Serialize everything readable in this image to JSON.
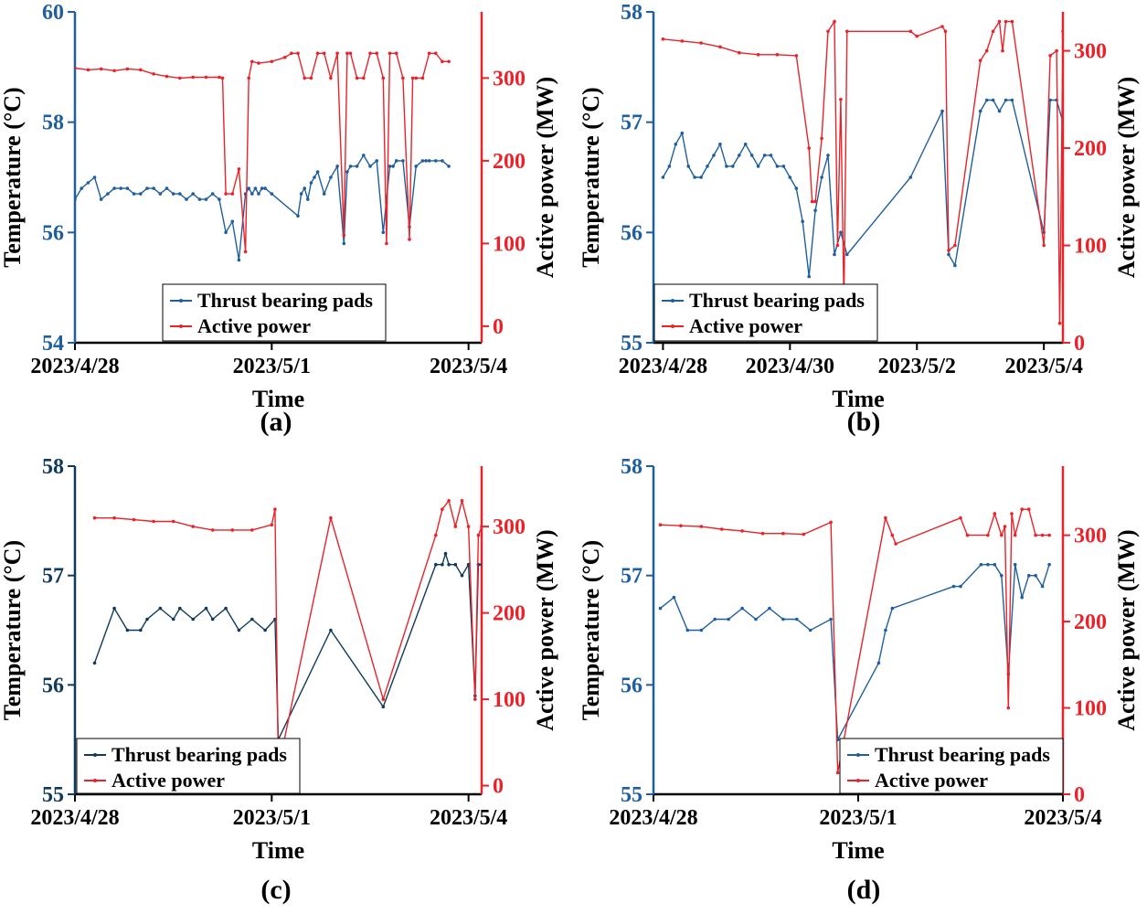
{
  "colors": {
    "temperature": "#1f5f9e",
    "temperature_dark": "#0f3a5c",
    "power": "#e8232a",
    "axis": "#000000"
  },
  "chart_data": [
    {
      "type": "line",
      "panel_label": "(a)",
      "xlabel": "Time",
      "ylabel_left": "Temperature (°C)",
      "ylabel_right": "Active power (MW)",
      "x_ticks": [
        "2023/4/28",
        "2023/5/1",
        "2023/5/4"
      ],
      "x_tick_days": [
        0,
        3,
        6
      ],
      "xlim_days": [
        0,
        6.2
      ],
      "ylim_left": [
        54,
        60
      ],
      "yticks_left": [
        "54",
        "56",
        "58",
        "60"
      ],
      "ylim_right": [
        -20,
        380
      ],
      "yticks_right": [
        "0",
        "100",
        "200",
        "300"
      ],
      "legend": [
        "Thrust bearing pads",
        "Active power"
      ],
      "series": [
        {
          "name": "Thrust bearing pads",
          "axis": "left",
          "color_key": "temperature",
          "x": [
            0,
            0.1,
            0.2,
            0.3,
            0.4,
            0.5,
            0.6,
            0.7,
            0.8,
            0.9,
            1.0,
            1.1,
            1.2,
            1.3,
            1.4,
            1.5,
            1.6,
            1.7,
            1.8,
            1.9,
            2.0,
            2.1,
            2.2,
            2.3,
            2.4,
            2.5,
            2.6,
            2.65,
            2.7,
            2.75,
            2.8,
            2.85,
            2.9,
            3.0,
            3.4,
            3.45,
            3.5,
            3.55,
            3.6,
            3.65,
            3.7,
            3.8,
            3.9,
            4.0,
            4.1,
            4.15,
            4.2,
            4.3,
            4.4,
            4.5,
            4.6,
            4.7,
            4.8,
            4.85,
            4.9,
            5.0,
            5.1,
            5.2,
            5.3,
            5.35,
            5.4,
            5.5,
            5.6,
            5.7
          ],
          "y": [
            56.6,
            56.8,
            56.9,
            57.0,
            56.6,
            56.7,
            56.8,
            56.8,
            56.8,
            56.7,
            56.7,
            56.8,
            56.8,
            56.7,
            56.8,
            56.7,
            56.7,
            56.6,
            56.7,
            56.6,
            56.6,
            56.7,
            56.6,
            56.0,
            56.2,
            55.5,
            56.7,
            56.8,
            56.7,
            56.8,
            56.7,
            56.8,
            56.8,
            56.7,
            56.3,
            56.7,
            56.8,
            56.6,
            56.9,
            57.0,
            57.1,
            56.7,
            57.0,
            57.2,
            55.8,
            57.1,
            57.2,
            57.2,
            57.4,
            57.2,
            57.3,
            56.0,
            57.2,
            57.2,
            57.3,
            57.3,
            56.1,
            57.2,
            57.3,
            57.3,
            57.3,
            57.3,
            57.3,
            57.2
          ]
        },
        {
          "name": "Active power",
          "axis": "right",
          "color_key": "power",
          "x": [
            0,
            0.2,
            0.4,
            0.6,
            0.8,
            1.0,
            1.2,
            1.4,
            1.6,
            1.8,
            2.0,
            2.2,
            2.25,
            2.3,
            2.4,
            2.5,
            2.6,
            2.65,
            2.7,
            2.8,
            3.0,
            3.2,
            3.3,
            3.4,
            3.5,
            3.6,
            3.7,
            3.8,
            3.9,
            4.0,
            4.1,
            4.15,
            4.2,
            4.3,
            4.4,
            4.5,
            4.6,
            4.7,
            4.75,
            4.8,
            4.9,
            5.0,
            5.1,
            5.15,
            5.2,
            5.3,
            5.4,
            5.5,
            5.6,
            5.7
          ],
          "y": [
            312,
            310,
            311,
            309,
            311,
            310,
            305,
            302,
            300,
            301,
            301,
            301,
            300,
            160,
            160,
            190,
            90,
            300,
            320,
            318,
            320,
            325,
            330,
            330,
            300,
            300,
            330,
            330,
            300,
            330,
            110,
            330,
            330,
            300,
            300,
            330,
            330,
            300,
            100,
            330,
            330,
            300,
            105,
            300,
            300,
            300,
            330,
            330,
            320,
            320
          ]
        }
      ]
    },
    {
      "type": "line",
      "panel_label": "(b)",
      "xlabel": "Time",
      "ylabel_left": "Temperature (°C)",
      "ylabel_right": "Active power (MW)",
      "x_ticks": [
        "2023/4/28",
        "2023/4/30",
        "2023/5/2",
        "2023/5/4"
      ],
      "x_tick_days": [
        0,
        2,
        4,
        6
      ],
      "xlim_days": [
        -0.15,
        6.3
      ],
      "ylim_left": [
        55,
        58
      ],
      "yticks_left": [
        "55",
        "56",
        "57",
        "58"
      ],
      "ylim_right": [
        0,
        340
      ],
      "yticks_right": [
        "0",
        "100",
        "200",
        "300"
      ],
      "legend": [
        "Thrust bearing pads",
        "Active power"
      ],
      "series": [
        {
          "name": "Thrust bearing pads",
          "axis": "left",
          "color_key": "temperature",
          "x": [
            0,
            0.1,
            0.2,
            0.3,
            0.4,
            0.5,
            0.6,
            0.7,
            0.8,
            0.9,
            1.0,
            1.1,
            1.2,
            1.3,
            1.4,
            1.5,
            1.6,
            1.7,
            1.8,
            1.9,
            2.0,
            2.1,
            2.2,
            2.3,
            2.4,
            2.5,
            2.6,
            2.7,
            2.8,
            2.9,
            3.9,
            4.4,
            4.5,
            4.6,
            5.0,
            5.1,
            5.2,
            5.3,
            5.4,
            5.5,
            6.0,
            6.1,
            6.2,
            6.3
          ],
          "y": [
            56.5,
            56.6,
            56.8,
            56.9,
            56.6,
            56.5,
            56.5,
            56.6,
            56.7,
            56.8,
            56.6,
            56.6,
            56.7,
            56.8,
            56.7,
            56.6,
            56.7,
            56.7,
            56.6,
            56.6,
            56.5,
            56.4,
            56.1,
            55.6,
            56.2,
            56.5,
            56.7,
            55.8,
            56.0,
            55.8,
            56.5,
            57.1,
            55.8,
            55.7,
            57.1,
            57.2,
            57.2,
            57.1,
            57.2,
            57.2,
            56.0,
            57.2,
            57.2,
            57.0
          ]
        },
        {
          "name": "Active power",
          "axis": "right",
          "color_key": "power",
          "x": [
            0,
            0.3,
            0.6,
            0.9,
            1.2,
            1.5,
            1.8,
            2.1,
            2.3,
            2.35,
            2.4,
            2.5,
            2.6,
            2.7,
            2.75,
            2.8,
            2.85,
            2.9,
            3.9,
            4.0,
            4.4,
            4.45,
            4.5,
            4.6,
            5.0,
            5.1,
            5.2,
            5.3,
            5.35,
            5.4,
            5.5,
            6.0,
            6.1,
            6.2,
            6.25,
            6.3
          ],
          "y": [
            312,
            310,
            308,
            304,
            298,
            296,
            296,
            295,
            200,
            145,
            145,
            210,
            320,
            330,
            100,
            250,
            40,
            320,
            320,
            315,
            325,
            320,
            95,
            100,
            290,
            300,
            320,
            330,
            300,
            330,
            330,
            100,
            295,
            300,
            20,
            320
          ]
        }
      ]
    },
    {
      "type": "line",
      "panel_label": "(c)",
      "xlabel": "Time",
      "ylabel_left": "Temperature (°C)",
      "ylabel_right": "Active power (MW)",
      "x_ticks": [
        "2023/4/28",
        "2023/5/1",
        "2023/5/4"
      ],
      "x_tick_days": [
        0,
        3,
        6
      ],
      "xlim_days": [
        0,
        6.2
      ],
      "ylim_left": [
        55,
        58
      ],
      "yticks_left": [
        "55",
        "56",
        "57",
        "58"
      ],
      "ylim_right": [
        -10,
        370
      ],
      "yticks_right": [
        "0",
        "100",
        "200",
        "300"
      ],
      "legend": [
        "Thrust bearing pads",
        "Active power"
      ],
      "series": [
        {
          "name": "Thrust bearing pads",
          "axis": "left",
          "color_key": "temperature_dark",
          "x": [
            0.3,
            0.6,
            0.8,
            1.0,
            1.1,
            1.3,
            1.5,
            1.6,
            1.8,
            2.0,
            2.1,
            2.3,
            2.5,
            2.7,
            2.9,
            3.05,
            3.1,
            3.9,
            4.7,
            5.5,
            5.6,
            5.65,
            5.7,
            5.8,
            5.9,
            6.0,
            6.1,
            6.15,
            6.2
          ],
          "y": [
            56.2,
            56.7,
            56.5,
            56.5,
            56.6,
            56.7,
            56.6,
            56.7,
            56.6,
            56.7,
            56.6,
            56.7,
            56.5,
            56.6,
            56.5,
            56.6,
            55.5,
            56.5,
            55.8,
            57.1,
            57.1,
            57.2,
            57.1,
            57.1,
            57.0,
            57.1,
            55.9,
            57.1,
            57.1
          ]
        },
        {
          "name": "Active power",
          "axis": "right",
          "color_key": "power",
          "x": [
            0.3,
            0.6,
            0.9,
            1.2,
            1.5,
            1.8,
            2.1,
            2.4,
            2.7,
            3.0,
            3.05,
            3.1,
            3.9,
            4.7,
            5.5,
            5.6,
            5.7,
            5.8,
            5.9,
            6.0,
            6.1,
            6.15,
            6.2,
            6.25
          ],
          "y": [
            310,
            310,
            308,
            306,
            306,
            300,
            296,
            296,
            296,
            302,
            320,
            20,
            310,
            100,
            290,
            320,
            330,
            300,
            330,
            300,
            100,
            290,
            300,
            20
          ]
        }
      ]
    },
    {
      "type": "line",
      "panel_label": "(d)",
      "xlabel": "Time",
      "ylabel_left": "Temperature (°C)",
      "ylabel_right": "Active power (MW)",
      "x_ticks": [
        "2023/4/28",
        "2023/5/1",
        "2023/5/4"
      ],
      "x_tick_days": [
        0,
        3,
        6
      ],
      "xlim_days": [
        0,
        6.0
      ],
      "ylim_left": [
        55,
        58
      ],
      "yticks_left": [
        "55",
        "56",
        "57",
        "58"
      ],
      "ylim_right": [
        0,
        380
      ],
      "yticks_right": [
        "0",
        "100",
        "200",
        "300"
      ],
      "legend": [
        "Thrust bearing pads",
        "Active power"
      ],
      "series": [
        {
          "name": "Thrust bearing pads",
          "axis": "left",
          "color_key": "temperature",
          "x": [
            0.1,
            0.3,
            0.5,
            0.7,
            0.9,
            1.1,
            1.3,
            1.5,
            1.7,
            1.9,
            2.1,
            2.3,
            2.6,
            2.7,
            3.3,
            3.4,
            3.5,
            4.4,
            4.5,
            4.8,
            4.9,
            5.0,
            5.1,
            5.2,
            5.3,
            5.4,
            5.5,
            5.6,
            5.7,
            5.8
          ],
          "y": [
            56.7,
            56.8,
            56.5,
            56.5,
            56.6,
            56.6,
            56.7,
            56.6,
            56.7,
            56.6,
            56.6,
            56.5,
            56.6,
            55.5,
            56.2,
            56.5,
            56.7,
            56.9,
            56.9,
            57.1,
            57.1,
            57.1,
            57.0,
            56.1,
            57.1,
            56.8,
            57.0,
            57.0,
            56.9,
            57.1
          ]
        },
        {
          "name": "Active power",
          "axis": "right",
          "color_key": "power",
          "x": [
            0.1,
            0.4,
            0.7,
            1.0,
            1.3,
            1.6,
            1.9,
            2.2,
            2.6,
            2.7,
            3.4,
            3.5,
            3.55,
            4.5,
            4.6,
            4.9,
            5.0,
            5.1,
            5.15,
            5.2,
            5.25,
            5.3,
            5.4,
            5.5,
            5.6,
            5.7,
            5.8
          ],
          "y": [
            312,
            311,
            310,
            307,
            305,
            302,
            302,
            301,
            315,
            25,
            320,
            300,
            290,
            320,
            300,
            300,
            325,
            300,
            310,
            100,
            325,
            300,
            330,
            330,
            300,
            300,
            300
          ]
        }
      ]
    }
  ]
}
